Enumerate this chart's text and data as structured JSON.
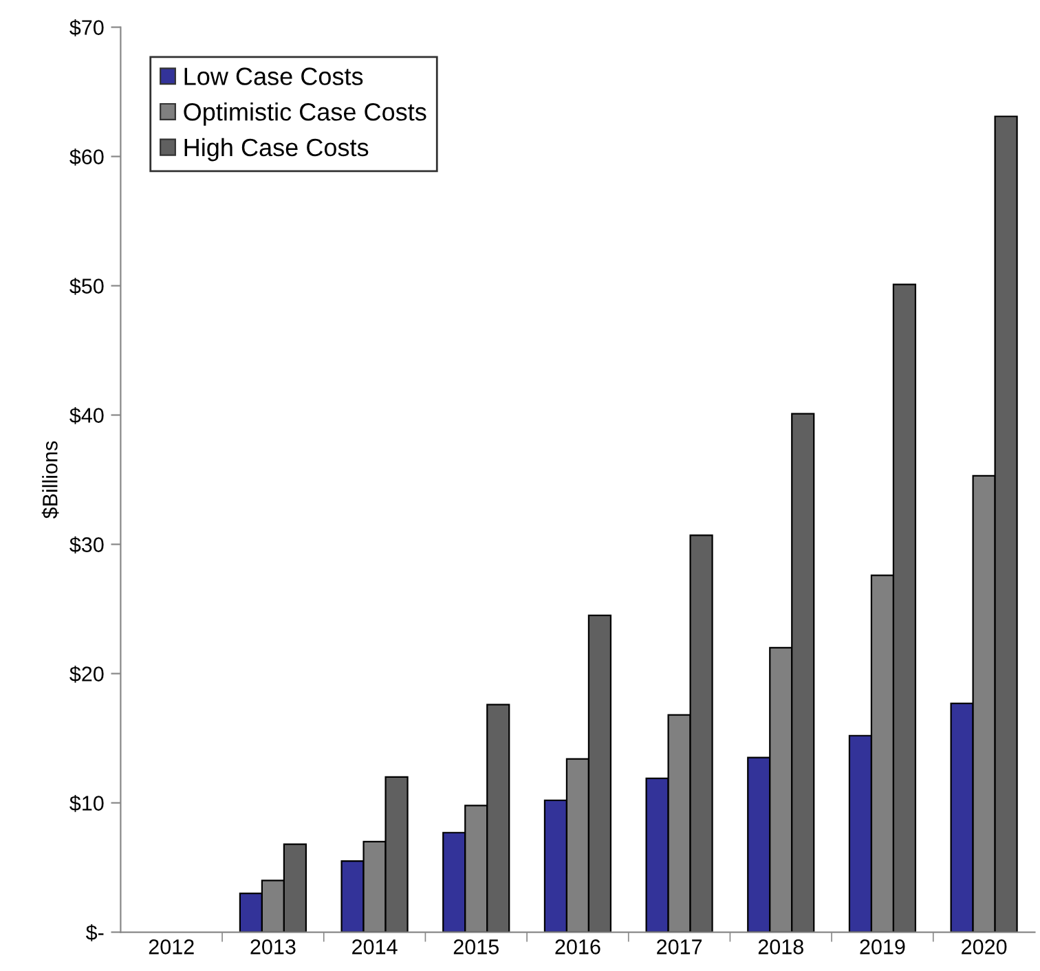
{
  "chart_data": {
    "type": "bar",
    "ylabel": "$Billions",
    "categories": [
      "2012",
      "2013",
      "2014",
      "2015",
      "2016",
      "2017",
      "2018",
      "2019",
      "2020"
    ],
    "series": [
      {
        "name": "Low Case Costs",
        "color": "#333399",
        "values": [
          null,
          3.0,
          5.5,
          7.7,
          10.2,
          11.9,
          13.5,
          15.2,
          17.7
        ]
      },
      {
        "name": "Optimistic Case Costs",
        "color": "#808080",
        "values": [
          null,
          4.0,
          7.0,
          9.8,
          13.4,
          16.8,
          22.0,
          27.6,
          35.3
        ]
      },
      {
        "name": "High Case Costs",
        "color": "#606060",
        "values": [
          null,
          6.8,
          12.0,
          17.6,
          24.5,
          30.7,
          40.1,
          50.1,
          63.1
        ]
      }
    ],
    "ylim": [
      0,
      70
    ],
    "yticks": [
      {
        "value": 0,
        "label": "$-"
      },
      {
        "value": 10,
        "label": "$10"
      },
      {
        "value": 20,
        "label": "$20"
      },
      {
        "value": 30,
        "label": "$30"
      },
      {
        "value": 40,
        "label": "$40"
      },
      {
        "value": 50,
        "label": "$50"
      },
      {
        "value": 60,
        "label": "$60"
      },
      {
        "value": 70,
        "label": "$70"
      }
    ],
    "grid": false,
    "legend": "top left"
  }
}
